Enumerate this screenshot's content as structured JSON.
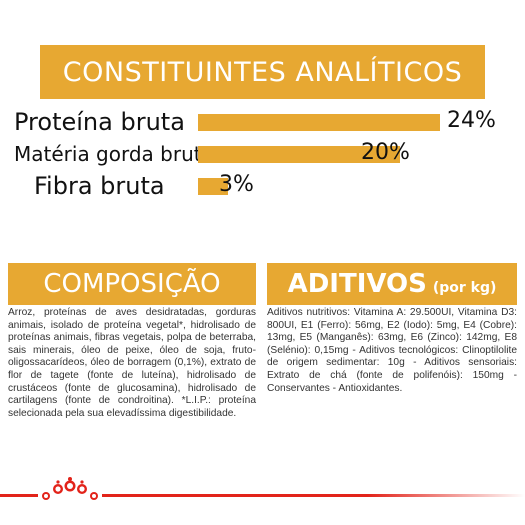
{
  "analytics": {
    "title": "CONSTITUINTES ANALÍTICOS",
    "bar_color": "#e7a832",
    "items": [
      {
        "label": "Proteína bruta",
        "value_text": "24%",
        "value": 24
      },
      {
        "label": "Matéria gorda bruta",
        "value_text": "20%",
        "value": 20
      },
      {
        "label": "Fibra bruta",
        "value_text": "3%",
        "value": 3
      }
    ]
  },
  "composition": {
    "title": "COMPOSIÇÃO",
    "text": "Arroz, proteínas de aves desidratadas, gorduras animais, isolado de proteína vegetal*, hidrolisado de proteínas animais, fibras vegetais, polpa de beterraba, sais minerais, óleo de peixe, óleo de soja, fruto-oligossacarídeos, óleo de borragem (0,1%), extrato de flor de tagete (fonte de luteína), hidrolisado de crustáceos (fonte de glucosamina), hidrolisado de cartilagens (fonte de condroitina). *L.I.P.: proteína selecionada pela sua elevadíssima digestibilidade."
  },
  "additives": {
    "title": "ADITIVOS",
    "title_suffix": "(por kg)",
    "text": "Aditivos nutritivos: Vitamina A: 29.500UI, Vitamina D3: 800UI, E1 (Ferro): 56mg, E2 (Iodo): 5mg, E4 (Cobre): 13mg, E5 (Manganês): 63mg, E6 (Zinco): 142mg, E8 (Selénio): 0,15mg - Aditivos tecnológicos: Clinoptilolite de origem sedimentar: 10g - Aditivos sensoriais: Extrato de chá (fonte de polifenóis): 150mg - Conservantes - Antioxidantes."
  },
  "footer": {
    "line_color": "#e2231a",
    "logo_icon": "royal-canin-crown-icon"
  }
}
